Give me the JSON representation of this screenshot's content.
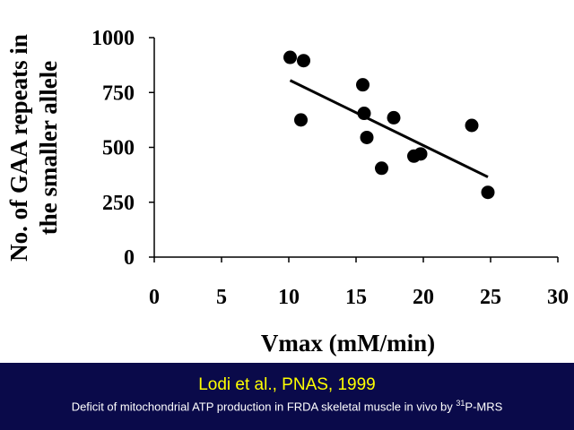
{
  "chart_data": {
    "type": "scatter",
    "xlabel": "Vmax (mM/min)",
    "ylabel": [
      "No. of GAA repeats in",
      "the smaller allele"
    ],
    "xlim": [
      0,
      30
    ],
    "ylim": [
      0,
      1000
    ],
    "xticks": [
      0,
      5,
      10,
      15,
      20,
      25,
      30
    ],
    "yticks": [
      0,
      250,
      500,
      750,
      1000
    ],
    "points": [
      {
        "x": 10.1,
        "y": 910
      },
      {
        "x": 11.1,
        "y": 895
      },
      {
        "x": 10.9,
        "y": 625
      },
      {
        "x": 15.5,
        "y": 785
      },
      {
        "x": 15.6,
        "y": 655
      },
      {
        "x": 15.8,
        "y": 545
      },
      {
        "x": 17.8,
        "y": 635
      },
      {
        "x": 16.9,
        "y": 405
      },
      {
        "x": 19.3,
        "y": 460
      },
      {
        "x": 19.8,
        "y": 470
      },
      {
        "x": 23.6,
        "y": 600
      },
      {
        "x": 24.8,
        "y": 295
      }
    ],
    "trendline": {
      "x": [
        10.1,
        24.8
      ],
      "y": [
        805,
        365
      ]
    },
    "grid": false,
    "legend": "none"
  },
  "footer": {
    "citation": "Lodi et al., PNAS, 1999",
    "subtitle_main": "Deficit of mitochondrial ATP production in FRDA skeletal muscle in vivo by ",
    "subtitle_sup": "31",
    "subtitle_end": "P-MRS"
  },
  "colors": {
    "footer_bg": "#0a0a4a",
    "citation": "#ffff00",
    "subtitle": "#ffffff",
    "marker": "#000000"
  }
}
